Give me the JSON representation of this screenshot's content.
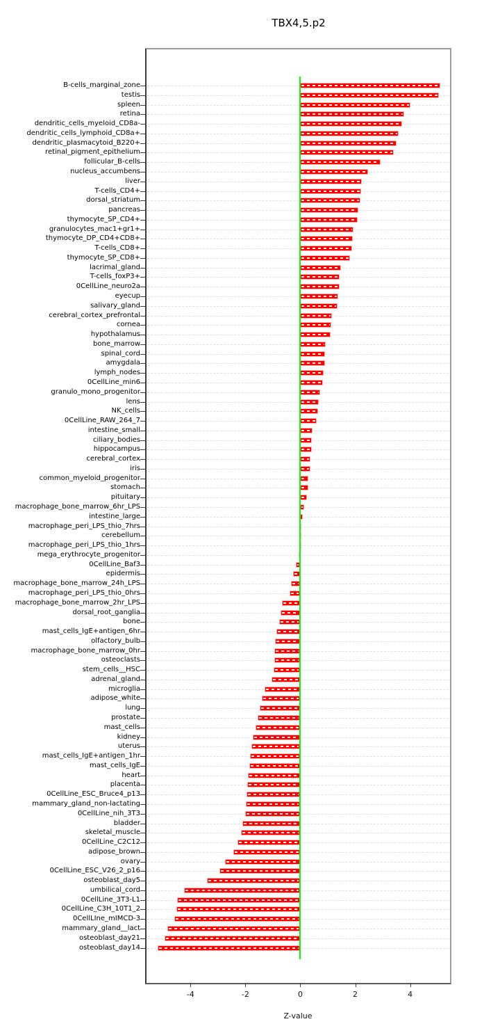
{
  "title": "TBX4,5.p2",
  "chart_data": {
    "type": "bar",
    "orientation": "horizontal",
    "title": "TBX4,5.p2",
    "xlabel": "Z-value",
    "xlim": [
      -5.6,
      5.45
    ],
    "xticks": [
      -4,
      -2,
      0,
      2,
      4
    ],
    "grid": true,
    "legend": "none",
    "bar_color": "#ff0000",
    "zero_line_color": "#00ff00",
    "grid_color": "#e1e1e1",
    "categories": [
      "B-cells_marginal_zone",
      "testis",
      "spleen",
      "retina",
      "dendritic_cells_myeloid_CD8a-",
      "dendritic_cells_lymphoid_CD8a+",
      "dendritic_plasmacytoid_B220+",
      "retinal_pigment_epithelium",
      "follicular_B-cells",
      "nucleus_accumbens",
      "liver",
      "T-cells_CD4+",
      "dorsal_striatum",
      "pancreas",
      "thymocyte_SP_CD4+",
      "granulocytes_mac1+gr1+",
      "thymocyte_DP_CD4+CD8+",
      "T-cells_CD8+",
      "thymocyte_SP_CD8+",
      "lacrimal_gland",
      "T-cells_foxP3+",
      "0CellLine_neuro2a",
      "eyecup",
      "salivary_gland",
      "cerebral_cortex_prefrontal",
      "cornea",
      "hypothalamus",
      "bone_marrow",
      "spinal_cord",
      "amygdala",
      "lymph_nodes",
      "0CellLine_min6",
      "granulo_mono_progenitor",
      "lens",
      "NK_cells",
      "0CellLine_RAW_264_7",
      "intestine_small",
      "ciliary_bodies",
      "hippocampus",
      "cerebral_cortex",
      "iris",
      "common_myeloid_progenitor",
      "stomach",
      "pituitary",
      "macrophage_bone_marrow_6hr_LPS",
      "intestine_large",
      "macrophage_peri_LPS_thio_7hrs",
      "cerebellum",
      "macrophage_peri_LPS_thio_1hrs",
      "mega_erythrocyte_progenitor",
      "0CellLine_Baf3",
      "epidermis",
      "macrophage_bone_marrow_24h_LPS",
      "macrophage_peri_LPS_thio_0hrs",
      "macrophage_bone_marrow_2hr_LPS",
      "dorsal_root_ganglia",
      "bone",
      "mast_cells_IgE+antigen_6hr",
      "olfactory_bulb",
      "macrophage_bone_marrow_0hr",
      "osteoclasts",
      "stem_cells__HSC",
      "adrenal_gland",
      "microglia",
      "adipose_white",
      "lung",
      "prostate",
      "mast_cells",
      "kidney",
      "uterus",
      "mast_cells_IgE+antigen_1hr",
      "mast_cells_IgE",
      "heart",
      "placenta",
      "0CellLine_ESC_Bruce4_p13",
      "mammary_gland_non-lactating",
      "0CellLine_nih_3T3",
      "bladder",
      "skeletal_muscle",
      "0CellLine_C2C12",
      "adipose_brown",
      "ovary",
      "0CellLine_ESC_V26_2_p16",
      "osteoblast_day5",
      "umbilical_cord",
      "0CellLine_3T3-L1",
      "0CellLine_C3H_10T1_2",
      "0CellLIne_mIMCD-3",
      "mammary_gland__lact",
      "osteoblast_day21",
      "osteoblast_day14"
    ],
    "values": [
      5.1,
      5.05,
      4.0,
      3.77,
      3.71,
      3.59,
      3.51,
      3.39,
      2.91,
      2.47,
      2.24,
      2.22,
      2.18,
      2.11,
      2.09,
      1.94,
      1.92,
      1.88,
      1.81,
      1.47,
      1.43,
      1.42,
      1.39,
      1.36,
      1.14,
      1.12,
      1.1,
      0.92,
      0.91,
      0.9,
      0.86,
      0.83,
      0.72,
      0.68,
      0.65,
      0.6,
      0.45,
      0.43,
      0.41,
      0.38,
      0.36,
      0.3,
      0.28,
      0.24,
      0.14,
      0.09,
      0.04,
      0.02,
      0.01,
      -0.07,
      -0.16,
      -0.27,
      -0.33,
      -0.38,
      -0.66,
      -0.71,
      -0.76,
      -0.86,
      -0.93,
      -0.94,
      -0.96,
      -0.98,
      -1.04,
      -1.3,
      -1.39,
      -1.47,
      -1.56,
      -1.62,
      -1.72,
      -1.79,
      -1.82,
      -1.87,
      -1.91,
      -1.93,
      -1.96,
      -1.98,
      -2.0,
      -2.12,
      -2.16,
      -2.3,
      -2.43,
      -2.75,
      -2.94,
      -3.41,
      -4.23,
      -4.5,
      -4.51,
      -4.58,
      -4.84,
      -4.94,
      -5.19
    ]
  }
}
